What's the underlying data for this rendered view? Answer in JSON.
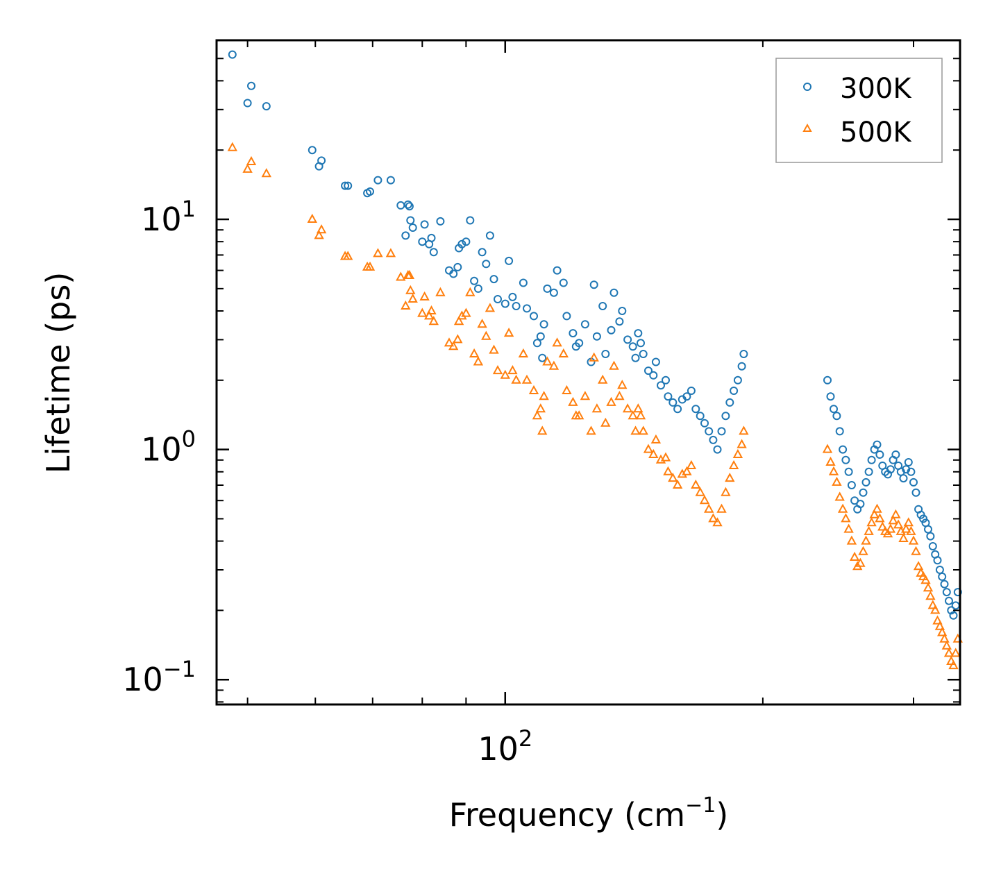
{
  "chart_data": {
    "type": "scatter",
    "title": "",
    "xlabel": "Frequency (cm",
    "xlabel_sup": "−1",
    "xlabel_tail": ")",
    "ylabel": "Lifetime (ps)",
    "xscale": "log",
    "yscale": "log",
    "xlim": [
      46,
      340
    ],
    "ylim": [
      0.078,
      60
    ],
    "xticks": [
      {
        "base": "10",
        "exp": "2",
        "value": 100
      }
    ],
    "yticks": [
      {
        "base": "10",
        "exp": "−1",
        "value": 0.1
      },
      {
        "base": "10",
        "exp": "0",
        "value": 1
      },
      {
        "base": "10",
        "exp": "1",
        "value": 10
      }
    ],
    "legend": {
      "position": "top-right"
    },
    "series": [
      {
        "name": "300K",
        "color": "#1f77b4",
        "marker": "circle",
        "points": [
          [
            48,
            52
          ],
          [
            50,
            32
          ],
          [
            50.5,
            38
          ],
          [
            52.6,
            31
          ],
          [
            59.5,
            20
          ],
          [
            60.6,
            17
          ],
          [
            61,
            18
          ],
          [
            65,
            14
          ],
          [
            65.5,
            14
          ],
          [
            69,
            13
          ],
          [
            69.5,
            13.2
          ],
          [
            71,
            14.8
          ],
          [
            73.5,
            14.8
          ],
          [
            75.5,
            11.5
          ],
          [
            77,
            11.6
          ],
          [
            77.3,
            11.4
          ],
          [
            76.5,
            8.5
          ],
          [
            77.5,
            9.9
          ],
          [
            78,
            9.2
          ],
          [
            80,
            8.0
          ],
          [
            80.5,
            9.5
          ],
          [
            81.5,
            7.8
          ],
          [
            82,
            8.3
          ],
          [
            82.5,
            7.2
          ],
          [
            84,
            9.8
          ],
          [
            86,
            6.0
          ],
          [
            87,
            5.8
          ],
          [
            88,
            6.2
          ],
          [
            88.3,
            7.5
          ],
          [
            89,
            7.8
          ],
          [
            90,
            8.0
          ],
          [
            91,
            9.9
          ],
          [
            92,
            5.4
          ],
          [
            93,
            5.0
          ],
          [
            94,
            7.2
          ],
          [
            95,
            6.4
          ],
          [
            96,
            8.5
          ],
          [
            97,
            5.5
          ],
          [
            98,
            4.5
          ],
          [
            100,
            4.3
          ],
          [
            101,
            6.6
          ],
          [
            102,
            4.6
          ],
          [
            103,
            4.2
          ],
          [
            105,
            5.3
          ],
          [
            106,
            4.1
          ],
          [
            108,
            3.8
          ],
          [
            109,
            2.9
          ],
          [
            110,
            3.1
          ],
          [
            110.5,
            2.5
          ],
          [
            111,
            3.5
          ],
          [
            112,
            5.0
          ],
          [
            114,
            4.8
          ],
          [
            115,
            6.0
          ],
          [
            117,
            5.3
          ],
          [
            118,
            3.8
          ],
          [
            120,
            3.2
          ],
          [
            121,
            2.8
          ],
          [
            122,
            2.9
          ],
          [
            124,
            3.5
          ],
          [
            126,
            2.4
          ],
          [
            127,
            5.2
          ],
          [
            128,
            3.1
          ],
          [
            130,
            4.2
          ],
          [
            131,
            2.6
          ],
          [
            133,
            3.3
          ],
          [
            134,
            4.8
          ],
          [
            136,
            3.6
          ],
          [
            137,
            4.0
          ],
          [
            139,
            3.0
          ],
          [
            141,
            2.8
          ],
          [
            142,
            2.5
          ],
          [
            143,
            3.2
          ],
          [
            144,
            2.9
          ],
          [
            145,
            2.6
          ],
          [
            147,
            2.2
          ],
          [
            149,
            2.1
          ],
          [
            150,
            2.4
          ],
          [
            152,
            1.9
          ],
          [
            154,
            2.0
          ],
          [
            155,
            1.7
          ],
          [
            157,
            1.6
          ],
          [
            159,
            1.5
          ],
          [
            161,
            1.65
          ],
          [
            163,
            1.7
          ],
          [
            165,
            1.8
          ],
          [
            167,
            1.5
          ],
          [
            169,
            1.4
          ],
          [
            171,
            1.3
          ],
          [
            173,
            1.2
          ],
          [
            175,
            1.1
          ],
          [
            177,
            1.0
          ],
          [
            179,
            1.2
          ],
          [
            181,
            1.4
          ],
          [
            183,
            1.6
          ],
          [
            185,
            1.8
          ],
          [
            187,
            2.0
          ],
          [
            189,
            2.3
          ],
          [
            190,
            2.6
          ],
          [
            238,
            2.0
          ],
          [
            240,
            1.7
          ],
          [
            242,
            1.5
          ],
          [
            244,
            1.4
          ],
          [
            246,
            1.2
          ],
          [
            248,
            1.0
          ],
          [
            250,
            0.9
          ],
          [
            252,
            0.8
          ],
          [
            254,
            0.7
          ],
          [
            256,
            0.6
          ],
          [
            258,
            0.55
          ],
          [
            260,
            0.58
          ],
          [
            262,
            0.65
          ],
          [
            264,
            0.72
          ],
          [
            266,
            0.8
          ],
          [
            268,
            0.9
          ],
          [
            270,
            1.0
          ],
          [
            272,
            1.05
          ],
          [
            274,
            0.95
          ],
          [
            276,
            0.85
          ],
          [
            278,
            0.8
          ],
          [
            280,
            0.78
          ],
          [
            282,
            0.82
          ],
          [
            284,
            0.9
          ],
          [
            286,
            0.95
          ],
          [
            288,
            0.85
          ],
          [
            290,
            0.8
          ],
          [
            292,
            0.75
          ],
          [
            294,
            0.82
          ],
          [
            296,
            0.88
          ],
          [
            298,
            0.8
          ],
          [
            300,
            0.72
          ],
          [
            302,
            0.65
          ],
          [
            304,
            0.55
          ],
          [
            306,
            0.52
          ],
          [
            308,
            0.5
          ],
          [
            310,
            0.48
          ],
          [
            312,
            0.45
          ],
          [
            314,
            0.42
          ],
          [
            316,
            0.38
          ],
          [
            318,
            0.35
          ],
          [
            320,
            0.33
          ],
          [
            322,
            0.3
          ],
          [
            324,
            0.28
          ],
          [
            326,
            0.26
          ],
          [
            328,
            0.24
          ],
          [
            330,
            0.22
          ],
          [
            332,
            0.2
          ],
          [
            334,
            0.19
          ],
          [
            336,
            0.21
          ],
          [
            338,
            0.24
          ]
        ]
      },
      {
        "name": "500K",
        "color": "#ff7f0e",
        "marker": "triangle",
        "points": [
          [
            48,
            20.5
          ],
          [
            50,
            16.5
          ],
          [
            50.5,
            17.8
          ],
          [
            52.6,
            15.8
          ],
          [
            59.5,
            10
          ],
          [
            60.6,
            8.5
          ],
          [
            61,
            9
          ],
          [
            65,
            6.9
          ],
          [
            65.5,
            6.9
          ],
          [
            69,
            6.2
          ],
          [
            69.5,
            6.2
          ],
          [
            71,
            7.1
          ],
          [
            73.5,
            7.1
          ],
          [
            75.5,
            5.6
          ],
          [
            77,
            5.7
          ],
          [
            77.3,
            5.7
          ],
          [
            76.5,
            4.2
          ],
          [
            77.5,
            4.9
          ],
          [
            78,
            4.5
          ],
          [
            80,
            3.9
          ],
          [
            80.5,
            4.6
          ],
          [
            81.5,
            3.8
          ],
          [
            82,
            4.0
          ],
          [
            82.5,
            3.6
          ],
          [
            84,
            4.8
          ],
          [
            86,
            2.9
          ],
          [
            87,
            2.8
          ],
          [
            88,
            3.0
          ],
          [
            88.3,
            3.6
          ],
          [
            89,
            3.8
          ],
          [
            90,
            3.9
          ],
          [
            91,
            4.8
          ],
          [
            92,
            2.6
          ],
          [
            93,
            2.4
          ],
          [
            94,
            3.5
          ],
          [
            95,
            3.1
          ],
          [
            96,
            4.1
          ],
          [
            97,
            2.7
          ],
          [
            98,
            2.2
          ],
          [
            100,
            2.1
          ],
          [
            101,
            3.2
          ],
          [
            102,
            2.2
          ],
          [
            103,
            2.0
          ],
          [
            105,
            2.6
          ],
          [
            106,
            2.0
          ],
          [
            108,
            1.8
          ],
          [
            109,
            1.4
          ],
          [
            110,
            1.5
          ],
          [
            110.5,
            1.2
          ],
          [
            111,
            1.7
          ],
          [
            112,
            2.4
          ],
          [
            114,
            2.3
          ],
          [
            115,
            2.9
          ],
          [
            117,
            2.6
          ],
          [
            118,
            1.8
          ],
          [
            120,
            1.6
          ],
          [
            121,
            1.4
          ],
          [
            122,
            1.4
          ],
          [
            124,
            1.7
          ],
          [
            126,
            1.2
          ],
          [
            127,
            2.5
          ],
          [
            128,
            1.5
          ],
          [
            130,
            2.0
          ],
          [
            131,
            1.3
          ],
          [
            133,
            1.6
          ],
          [
            134,
            2.3
          ],
          [
            136,
            1.7
          ],
          [
            137,
            1.9
          ],
          [
            139,
            1.5
          ],
          [
            141,
            1.4
          ],
          [
            142,
            1.2
          ],
          [
            143,
            1.5
          ],
          [
            144,
            1.4
          ],
          [
            145,
            1.2
          ],
          [
            147,
            1.0
          ],
          [
            149,
            0.95
          ],
          [
            150,
            1.1
          ],
          [
            152,
            0.9
          ],
          [
            154,
            0.92
          ],
          [
            155,
            0.8
          ],
          [
            157,
            0.75
          ],
          [
            159,
            0.7
          ],
          [
            161,
            0.78
          ],
          [
            163,
            0.8
          ],
          [
            165,
            0.85
          ],
          [
            167,
            0.7
          ],
          [
            169,
            0.65
          ],
          [
            171,
            0.6
          ],
          [
            173,
            0.55
          ],
          [
            175,
            0.5
          ],
          [
            177,
            0.48
          ],
          [
            179,
            0.55
          ],
          [
            181,
            0.65
          ],
          [
            183,
            0.75
          ],
          [
            185,
            0.85
          ],
          [
            187,
            0.95
          ],
          [
            189,
            1.05
          ],
          [
            190,
            1.2
          ],
          [
            238,
            1.0
          ],
          [
            240,
            0.88
          ],
          [
            242,
            0.8
          ],
          [
            244,
            0.72
          ],
          [
            246,
            0.62
          ],
          [
            248,
            0.55
          ],
          [
            250,
            0.5
          ],
          [
            252,
            0.45
          ],
          [
            254,
            0.4
          ],
          [
            256,
            0.34
          ],
          [
            258,
            0.31
          ],
          [
            260,
            0.32
          ],
          [
            262,
            0.36
          ],
          [
            264,
            0.4
          ],
          [
            266,
            0.44
          ],
          [
            268,
            0.48
          ],
          [
            270,
            0.52
          ],
          [
            272,
            0.55
          ],
          [
            274,
            0.5
          ],
          [
            276,
            0.46
          ],
          [
            278,
            0.44
          ],
          [
            280,
            0.43
          ],
          [
            282,
            0.45
          ],
          [
            284,
            0.49
          ],
          [
            286,
            0.52
          ],
          [
            288,
            0.47
          ],
          [
            290,
            0.44
          ],
          [
            292,
            0.41
          ],
          [
            294,
            0.45
          ],
          [
            296,
            0.48
          ],
          [
            298,
            0.44
          ],
          [
            300,
            0.4
          ],
          [
            302,
            0.36
          ],
          [
            304,
            0.31
          ],
          [
            306,
            0.29
          ],
          [
            308,
            0.28
          ],
          [
            310,
            0.27
          ],
          [
            312,
            0.25
          ],
          [
            314,
            0.23
          ],
          [
            316,
            0.21
          ],
          [
            318,
            0.2
          ],
          [
            320,
            0.18
          ],
          [
            322,
            0.17
          ],
          [
            324,
            0.16
          ],
          [
            326,
            0.15
          ],
          [
            328,
            0.14
          ],
          [
            330,
            0.13
          ],
          [
            332,
            0.12
          ],
          [
            334,
            0.115
          ],
          [
            336,
            0.13
          ],
          [
            338,
            0.15
          ]
        ]
      }
    ]
  }
}
